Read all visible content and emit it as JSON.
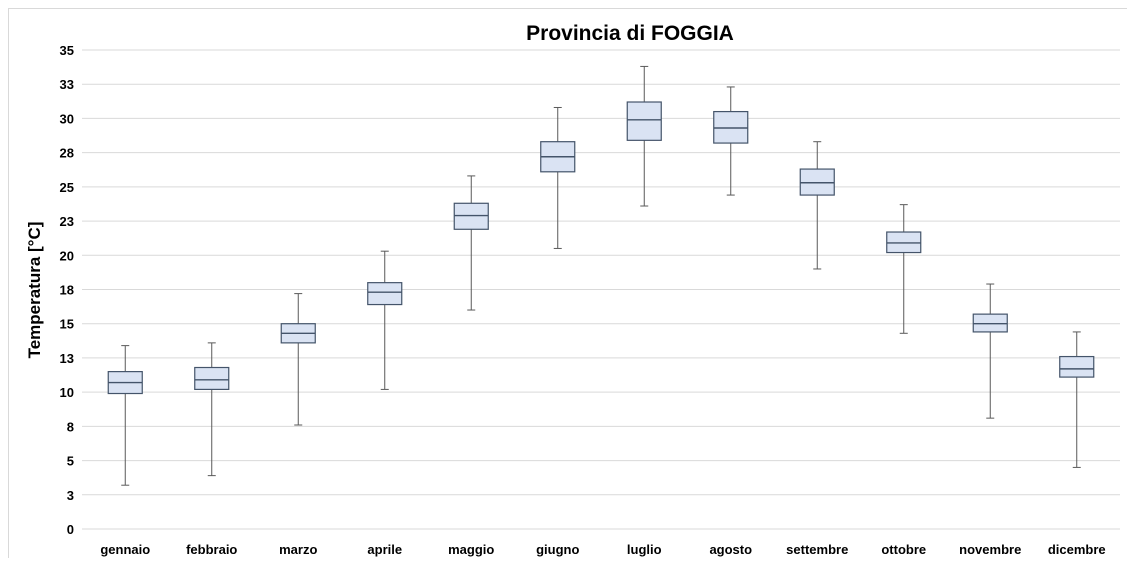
{
  "chart_data": {
    "type": "box",
    "title": "Provincia di FOGGIA",
    "xlabel": "",
    "ylabel": "Temperatura [°C]",
    "ylim": [
      0,
      35
    ],
    "yticks": [
      0,
      2.5,
      5,
      7.5,
      10,
      12.5,
      15,
      17.5,
      20,
      22.5,
      25,
      27.5,
      30,
      32.5,
      35
    ],
    "ytick_labels": [
      "0",
      "3",
      "5",
      "8",
      "10",
      "13",
      "15",
      "18",
      "20",
      "23",
      "25",
      "28",
      "30",
      "33",
      "35"
    ],
    "grid": true,
    "legend": "none",
    "colors": {
      "box_fill": "#dae3f3",
      "box_stroke": "#44546a",
      "whisker": "#595959",
      "grid": "#d9d9d9"
    },
    "categories": [
      "gennaio",
      "febbraio",
      "marzo",
      "aprile",
      "maggio",
      "giugno",
      "luglio",
      "agosto",
      "settembre",
      "ottobre",
      "novembre",
      "dicembre"
    ],
    "boxes": [
      {
        "min": 3.2,
        "q1": 9.9,
        "median": 10.7,
        "q3": 11.5,
        "max": 13.4
      },
      {
        "min": 3.9,
        "q1": 10.2,
        "median": 10.9,
        "q3": 11.8,
        "max": 13.6
      },
      {
        "min": 7.6,
        "q1": 13.6,
        "median": 14.3,
        "q3": 15.0,
        "max": 17.2
      },
      {
        "min": 10.2,
        "q1": 16.4,
        "median": 17.3,
        "q3": 18.0,
        "max": 20.3
      },
      {
        "min": 16.0,
        "q1": 21.9,
        "median": 22.9,
        "q3": 23.8,
        "max": 25.8
      },
      {
        "min": 20.5,
        "q1": 26.1,
        "median": 27.2,
        "q3": 28.3,
        "max": 30.8
      },
      {
        "min": 23.6,
        "q1": 28.4,
        "median": 29.9,
        "q3": 31.2,
        "max": 33.8
      },
      {
        "min": 24.4,
        "q1": 28.2,
        "median": 29.3,
        "q3": 30.5,
        "max": 32.3
      },
      {
        "min": 19.0,
        "q1": 24.4,
        "median": 25.3,
        "q3": 26.3,
        "max": 28.3
      },
      {
        "min": 14.3,
        "q1": 20.2,
        "median": 20.9,
        "q3": 21.7,
        "max": 23.7
      },
      {
        "min": 8.1,
        "q1": 14.4,
        "median": 15.0,
        "q3": 15.7,
        "max": 17.9
      },
      {
        "min": 4.5,
        "q1": 11.1,
        "median": 11.7,
        "q3": 12.6,
        "max": 14.4
      }
    ]
  }
}
